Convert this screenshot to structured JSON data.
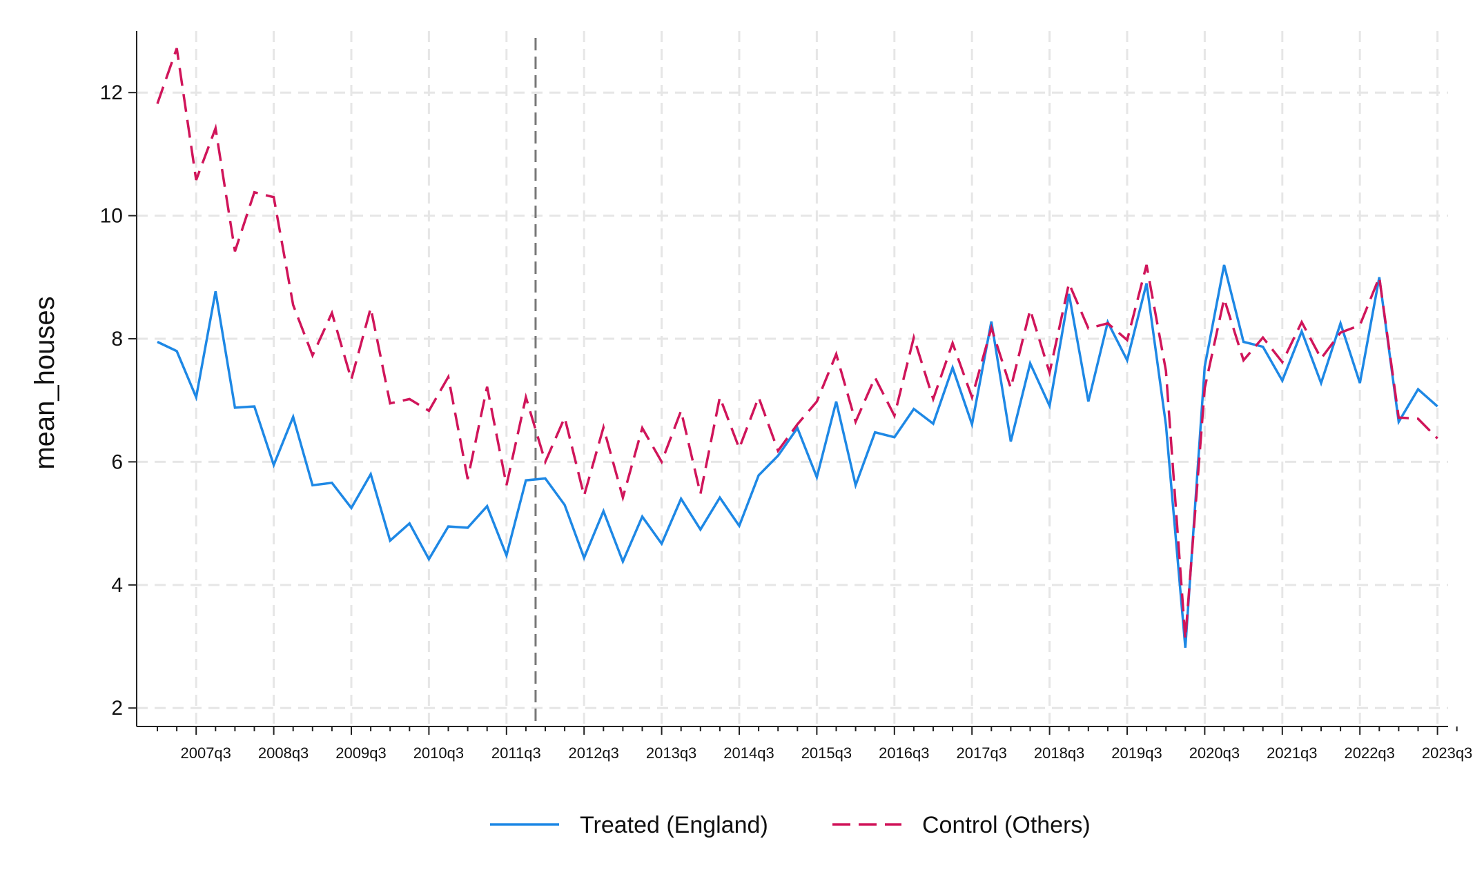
{
  "chart_data": {
    "type": "line",
    "title": "",
    "xlabel": "",
    "ylabel": "mean_houses",
    "ylim": [
      1.7,
      13.0
    ],
    "y_ticks": [
      2,
      4,
      6,
      8,
      10,
      12
    ],
    "x_tick_labels": [
      "2007q3",
      "2008q3",
      "2009q3",
      "2010q3",
      "2011q3",
      "2012q3",
      "2013q3",
      "2014q3",
      "2015q3",
      "2016q3",
      "2017q3",
      "2018q3",
      "2019q3",
      "2020q3",
      "2021q3",
      "2022q3",
      "2023q3"
    ],
    "x": [
      "2007q1",
      "2007q2",
      "2007q3",
      "2007q4",
      "2008q1",
      "2008q2",
      "2008q3",
      "2008q4",
      "2009q1",
      "2009q2",
      "2009q3",
      "2009q4",
      "2010q1",
      "2010q2",
      "2010q3",
      "2010q4",
      "2011q1",
      "2011q2",
      "2011q3",
      "2011q4",
      "2012q1",
      "2012q2",
      "2012q3",
      "2012q4",
      "2013q1",
      "2013q2",
      "2013q3",
      "2013q4",
      "2014q1",
      "2014q2",
      "2014q3",
      "2014q4",
      "2015q1",
      "2015q2",
      "2015q3",
      "2015q4",
      "2016q1",
      "2016q2",
      "2016q3",
      "2016q4",
      "2017q1",
      "2017q2",
      "2017q3",
      "2017q4",
      "2018q1",
      "2018q2",
      "2018q3",
      "2018q4",
      "2019q1",
      "2019q2",
      "2019q3",
      "2019q4",
      "2020q1",
      "2020q2",
      "2020q3",
      "2020q4",
      "2021q1",
      "2021q2",
      "2021q3",
      "2021q4",
      "2022q1",
      "2022q2",
      "2022q3",
      "2022q4",
      "2023q1",
      "2023q2",
      "2023q3",
      "2023q4"
    ],
    "vline_x": "2012q1",
    "grid": true,
    "legend_position": "bottom",
    "series": [
      {
        "name": "Treated (England)",
        "color": "#1e88e5",
        "style": "solid",
        "values": [
          7.95,
          7.8,
          7.05,
          8.77,
          6.88,
          6.9,
          5.95,
          6.73,
          5.62,
          5.66,
          5.25,
          5.8,
          4.72,
          5.0,
          4.42,
          4.95,
          4.93,
          5.28,
          4.48,
          5.7,
          5.73,
          5.3,
          4.44,
          5.2,
          4.38,
          5.11,
          4.67,
          5.4,
          4.9,
          5.42,
          4.96,
          5.78,
          6.1,
          6.55,
          5.75,
          6.98,
          5.62,
          6.48,
          6.4,
          6.86,
          6.62,
          7.53,
          6.61,
          8.28,
          6.33,
          7.6,
          6.91,
          8.73,
          6.98,
          8.27,
          7.65,
          8.9,
          6.6,
          2.98,
          7.55,
          9.2,
          7.95,
          7.87,
          7.32,
          8.12,
          7.28,
          8.25,
          7.28,
          9.0,
          6.65,
          7.18,
          6.9,
          null
        ]
      },
      {
        "name": "Control (Others)",
        "color": "#d0155a",
        "style": "dashed",
        "values": [
          11.82,
          12.72,
          10.58,
          11.42,
          9.42,
          10.38,
          10.3,
          8.55,
          7.73,
          8.42,
          7.34,
          8.5,
          6.95,
          7.02,
          6.83,
          7.38,
          5.72,
          7.22,
          5.62,
          7.05,
          6.0,
          6.72,
          5.45,
          6.56,
          5.42,
          6.55,
          6.0,
          6.83,
          5.48,
          7.05,
          6.22,
          7.05,
          6.18,
          6.61,
          6.98,
          7.75,
          6.65,
          7.37,
          6.75,
          8.02,
          7.02,
          7.93,
          7.05,
          8.18,
          7.2,
          8.47,
          7.45,
          8.9,
          8.17,
          8.25,
          7.98,
          9.2,
          7.48,
          3.12,
          7.2,
          8.65,
          7.65,
          8.02,
          7.62,
          8.27,
          7.68,
          8.1,
          8.22,
          9.0,
          6.72,
          6.7,
          6.38,
          null
        ]
      }
    ]
  }
}
